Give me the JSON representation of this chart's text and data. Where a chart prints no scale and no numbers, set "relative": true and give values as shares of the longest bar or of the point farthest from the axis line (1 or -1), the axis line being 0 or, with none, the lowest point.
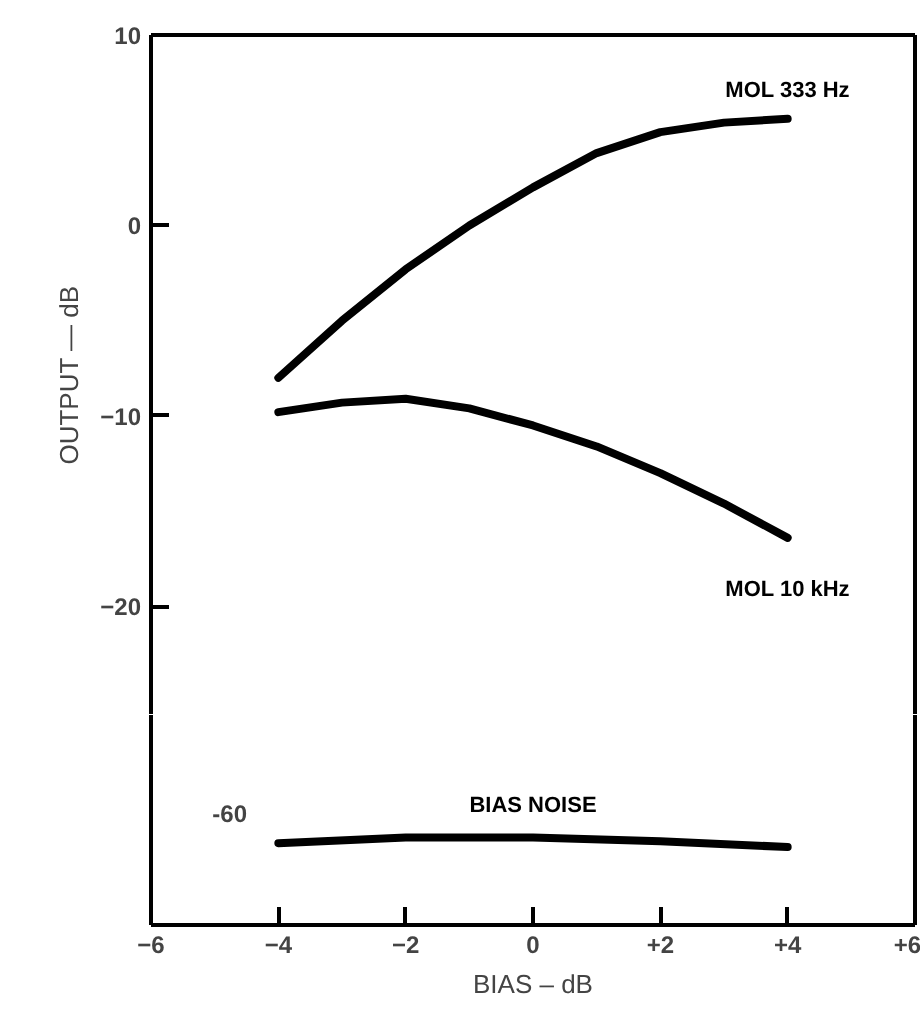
{
  "chart_data": [
    {
      "type": "line",
      "ylabel": "OUTPUT — dB",
      "x": [
        -4,
        -3,
        -2,
        -1,
        0,
        1,
        2,
        3,
        4
      ],
      "series": [
        {
          "name": "MOL 333 Hz",
          "color": "#000000",
          "values": [
            -8,
            -5,
            -2.3,
            0,
            2,
            3.8,
            4.9,
            5.4,
            5.6
          ]
        },
        {
          "name": "MOL 10 kHz",
          "color": "#000000",
          "values": [
            -9.8,
            -9.3,
            -9.1,
            -9.6,
            -10.5,
            -11.6,
            -13.0,
            -14.6,
            -16.4
          ]
        }
      ],
      "xlim": [
        -6,
        6
      ],
      "ylim": [
        -25.7,
        10
      ],
      "yticks": [
        -20,
        -10,
        0,
        10
      ],
      "tick_labels": "y"
    },
    {
      "type": "line",
      "xlabel": "BIAS – dB",
      "x": [
        -4,
        -2,
        0,
        2,
        4
      ],
      "relative": true,
      "series": [
        {
          "name": "BIAS NOISE",
          "color": "#000000",
          "values": [
            0.935,
            1,
            1,
            0.957,
            0.891
          ]
        }
      ],
      "xlim": [
        -6,
        6
      ],
      "xticks": [
        -6,
        -4,
        -2,
        0,
        {
          "value": 2,
          "label": "+2"
        },
        {
          "value": 4,
          "label": "+4"
        },
        {
          "value": 6,
          "label": "+6"
        }
      ],
      "annotations": [
        "-60"
      ]
    }
  ]
}
